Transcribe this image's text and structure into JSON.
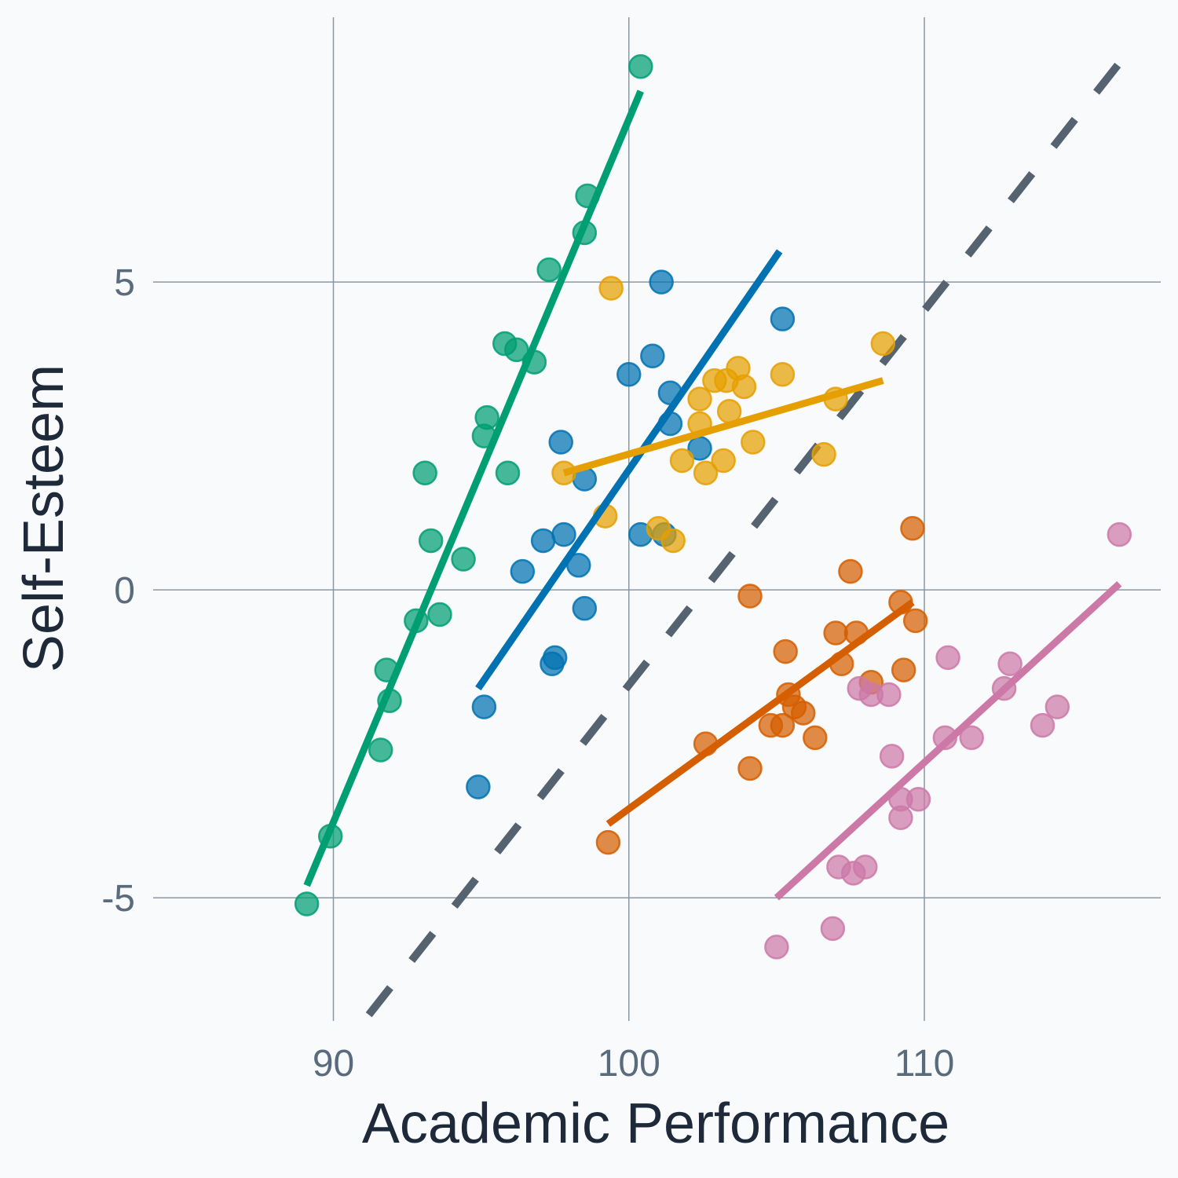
{
  "chart_data": {
    "type": "scatter",
    "title": "",
    "xlabel": "Academic Performance",
    "ylabel": "Self-Esteem",
    "xlim": [
      83.9,
      118.0
    ],
    "ylim": [
      -7.0,
      9.3
    ],
    "x_ticks": [
      90,
      100,
      110
    ],
    "x_tick_labels": [
      "90",
      "100",
      "110"
    ],
    "y_ticks": [
      -5,
      0,
      5
    ],
    "y_tick_labels": [
      "-5",
      "0",
      "5"
    ],
    "grid": true,
    "legend": "none",
    "reference_line": {
      "style": "dashed",
      "color": "#556270",
      "points": [
        [
          91.2,
          -6.9
        ],
        [
          117.0,
          8.8
        ]
      ]
    },
    "series": [
      {
        "color": "#009e73",
        "fit": [
          [
            89.1,
            -4.8
          ],
          [
            100.4,
            8.1
          ]
        ],
        "points": [
          [
            89.1,
            -5.1
          ],
          [
            89.9,
            -4.0
          ],
          [
            91.6,
            -2.6
          ],
          [
            91.8,
            -1.3
          ],
          [
            91.9,
            -1.8
          ],
          [
            92.8,
            -0.5
          ],
          [
            93.1,
            1.9
          ],
          [
            93.3,
            0.8
          ],
          [
            93.6,
            -0.4
          ],
          [
            94.4,
            0.5
          ],
          [
            95.1,
            2.5
          ],
          [
            95.2,
            2.8
          ],
          [
            95.9,
            1.9
          ],
          [
            95.8,
            4.0
          ],
          [
            96.2,
            3.9
          ],
          [
            96.8,
            3.7
          ],
          [
            97.3,
            5.2
          ],
          [
            98.5,
            5.8
          ],
          [
            98.6,
            6.4
          ],
          [
            100.4,
            8.5
          ]
        ]
      },
      {
        "color": "#0072b2",
        "fit": [
          [
            94.9,
            -1.6
          ],
          [
            105.1,
            5.5
          ]
        ],
        "points": [
          [
            94.9,
            -3.2
          ],
          [
            95.1,
            -1.9
          ],
          [
            96.4,
            0.3
          ],
          [
            97.1,
            0.8
          ],
          [
            97.4,
            -1.2
          ],
          [
            97.5,
            -1.1
          ],
          [
            97.7,
            2.4
          ],
          [
            97.8,
            0.9
          ],
          [
            98.3,
            0.4
          ],
          [
            98.5,
            1.8
          ],
          [
            98.5,
            -0.3
          ],
          [
            100.0,
            3.5
          ],
          [
            100.4,
            0.9
          ],
          [
            100.8,
            3.8
          ],
          [
            101.1,
            5.0
          ],
          [
            101.2,
            0.9
          ],
          [
            101.4,
            2.7
          ],
          [
            101.4,
            3.2
          ],
          [
            102.4,
            2.3
          ],
          [
            105.2,
            4.4
          ]
        ]
      },
      {
        "color": "#e69f00",
        "fit": [
          [
            97.8,
            1.9
          ],
          [
            108.6,
            3.4
          ]
        ],
        "points": [
          [
            97.8,
            1.9
          ],
          [
            99.2,
            1.2
          ],
          [
            99.4,
            4.9
          ],
          [
            101.0,
            1.0
          ],
          [
            101.5,
            0.8
          ],
          [
            101.8,
            2.1
          ],
          [
            102.4,
            2.7
          ],
          [
            102.4,
            3.1
          ],
          [
            102.6,
            1.9
          ],
          [
            102.9,
            3.4
          ],
          [
            103.2,
            2.1
          ],
          [
            103.3,
            3.4
          ],
          [
            103.4,
            2.9
          ],
          [
            103.7,
            3.6
          ],
          [
            103.9,
            3.3
          ],
          [
            104.2,
            2.4
          ],
          [
            105.2,
            3.5
          ],
          [
            106.6,
            2.2
          ],
          [
            107.0,
            3.1
          ],
          [
            108.6,
            4.0
          ]
        ]
      },
      {
        "color": "#d55e00",
        "fit": [
          [
            99.3,
            -3.8
          ],
          [
            109.6,
            -0.2
          ]
        ],
        "points": [
          [
            99.3,
            -4.1
          ],
          [
            102.6,
            -2.5
          ],
          [
            104.1,
            -2.9
          ],
          [
            104.1,
            -0.1
          ],
          [
            104.8,
            -2.2
          ],
          [
            105.2,
            -2.2
          ],
          [
            105.3,
            -1.0
          ],
          [
            105.4,
            -1.7
          ],
          [
            105.6,
            -1.9
          ],
          [
            105.9,
            -2.0
          ],
          [
            106.3,
            -2.4
          ],
          [
            107.0,
            -0.7
          ],
          [
            107.2,
            -1.2
          ],
          [
            107.5,
            0.3
          ],
          [
            107.7,
            -0.7
          ],
          [
            108.2,
            -1.5
          ],
          [
            109.2,
            -0.2
          ],
          [
            109.3,
            -1.3
          ],
          [
            109.6,
            1.0
          ],
          [
            109.7,
            -0.5
          ]
        ]
      },
      {
        "color": "#cc79a7",
        "fit": [
          [
            105.0,
            -5.0
          ],
          [
            116.6,
            0.1
          ]
        ],
        "points": [
          [
            105.0,
            -5.8
          ],
          [
            106.9,
            -5.5
          ],
          [
            107.1,
            -4.5
          ],
          [
            107.6,
            -4.6
          ],
          [
            108.0,
            -4.5
          ],
          [
            107.8,
            -1.6
          ],
          [
            108.2,
            -1.7
          ],
          [
            108.8,
            -1.7
          ],
          [
            108.9,
            -2.7
          ],
          [
            109.2,
            -3.4
          ],
          [
            109.2,
            -3.7
          ],
          [
            109.8,
            -3.4
          ],
          [
            110.7,
            -2.4
          ],
          [
            110.8,
            -1.1
          ],
          [
            111.6,
            -2.4
          ],
          [
            112.7,
            -1.6
          ],
          [
            112.9,
            -1.2
          ],
          [
            114.0,
            -2.2
          ],
          [
            114.5,
            -1.9
          ],
          [
            116.6,
            0.9
          ]
        ]
      }
    ]
  }
}
